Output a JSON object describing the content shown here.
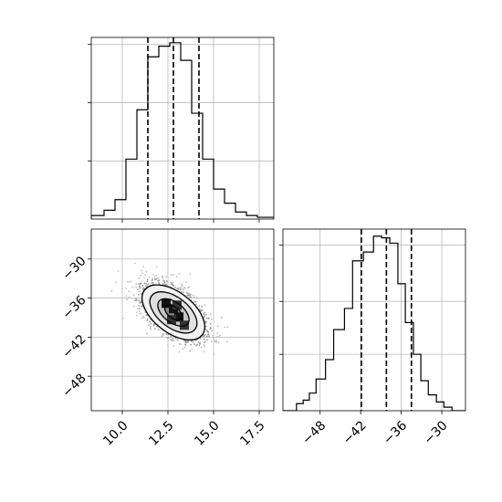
{
  "chart_data": [
    {
      "panel": "histogram-param-1",
      "type": "bar",
      "xlim": [
        8.3,
        18.3
      ],
      "ylim": [
        0,
        1.0
      ],
      "grid": true,
      "bin_edges": [
        8.3,
        9.0,
        9.6,
        10.2,
        10.8,
        11.4,
        12.0,
        12.6,
        13.2,
        13.8,
        14.4,
        15.0,
        15.6,
        16.2,
        16.8,
        17.4,
        18.3
      ],
      "counts": [
        0.02,
        0.05,
        0.11,
        0.34,
        0.62,
        0.92,
        0.98,
        1.0,
        0.9,
        0.6,
        0.34,
        0.17,
        0.09,
        0.04,
        0.02,
        0.01
      ],
      "quantile_lines": [
        11.4,
        12.8,
        14.2
      ],
      "y_ticks": [
        0.33,
        0.66,
        0.99
      ]
    },
    {
      "panel": "histogram-param-2",
      "type": "bar",
      "xlim": [
        -53.5,
        -26.5
      ],
      "ylim": [
        0,
        1.0
      ],
      "grid": true,
      "x_ticks": [
        -48,
        -42,
        -36,
        -30
      ],
      "x_tick_labels": [
        "−48",
        "−42",
        "−36",
        "−30"
      ],
      "bin_edges": [
        -53.5,
        -51.5,
        -50.5,
        -49.6,
        -48.6,
        -47.2,
        -46.0,
        -44.4,
        -43.2,
        -41.6,
        -40.1,
        -38.9,
        -37.7,
        -36.5,
        -35.4,
        -34.2,
        -33.1,
        -32.0,
        -30.8,
        -29.7,
        -28.5,
        -26.5
      ],
      "counts": [
        0.0,
        0.04,
        0.06,
        0.1,
        0.18,
        0.29,
        0.46,
        0.58,
        0.85,
        0.9,
        0.99,
        0.98,
        0.95,
        0.72,
        0.5,
        0.32,
        0.17,
        0.09,
        0.05,
        0.02,
        0.0
      ],
      "quantile_lines": [
        -41.9,
        -38.2,
        -34.5
      ],
      "y_ticks": [
        0.32,
        0.62,
        0.94
      ]
    },
    {
      "panel": "joint-param-1-param-2",
      "type": "scatter",
      "xlim": [
        8.3,
        18.3
      ],
      "ylim": [
        -53.3,
        -25.4
      ],
      "grid": true,
      "x_ticks": [
        10.0,
        12.5,
        15.0,
        17.5
      ],
      "x_tick_labels": [
        "10.0",
        "12.5",
        "15.0",
        "17.5"
      ],
      "y_ticks": [
        -30,
        -36,
        -42,
        -48
      ],
      "y_tick_labels": [
        "−30",
        "−36",
        "−42",
        "−48"
      ],
      "center": [
        12.8,
        -38.2
      ],
      "correlation": -0.7,
      "contour_levels": [
        "0.5-sigma",
        "1-sigma",
        "1.5-sigma",
        "2-sigma"
      ]
    }
  ]
}
